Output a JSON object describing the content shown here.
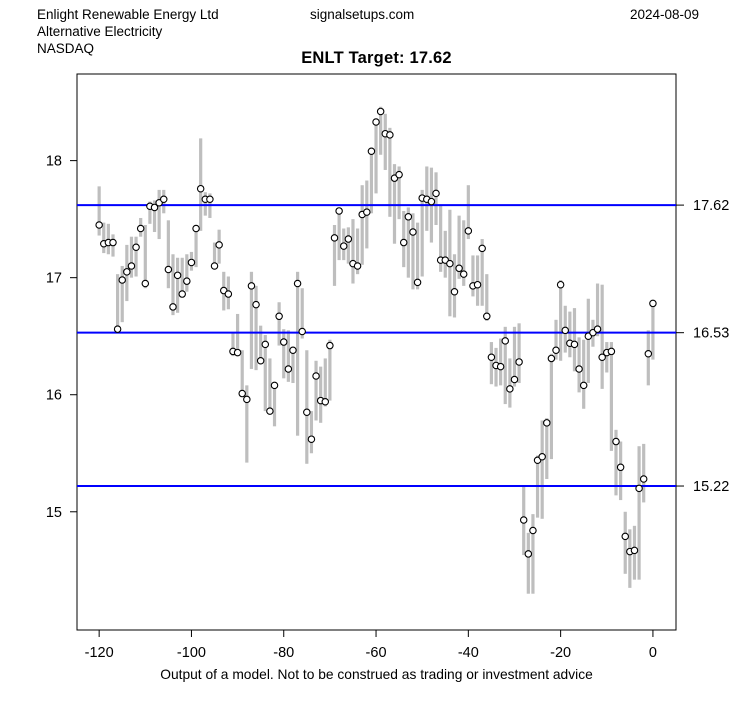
{
  "header": {
    "company": "Enlight Renewable Energy Ltd",
    "industry": "Alternative Electricity",
    "exchange": "NASDAQ",
    "website": "signalsetups.com",
    "date": "2024-08-09"
  },
  "title": "ENLT Target: 17.62",
  "footer": {
    "disclaimer": "Output of a model. Not to be construed as trading or investment advice"
  },
  "chart_data": {
    "type": "bar",
    "subtype": "daily-high-low-bars-with-close-markers",
    "title": "ENLT Target: 17.62",
    "ticker": "ENLT",
    "target_value": 17.62,
    "xlabel": "",
    "ylabel": "",
    "grid": false,
    "xlim": [
      -124.8,
      5.0
    ],
    "ylim": [
      13.99,
      18.74
    ],
    "x_ticks": [
      -120,
      -100,
      -80,
      -60,
      -40,
      -20,
      0
    ],
    "y_ticks": [
      15,
      16,
      17,
      18
    ],
    "hlines": [
      {
        "value": 17.62,
        "label": "17.62"
      },
      {
        "value": 16.53,
        "label": "16.53"
      },
      {
        "value": 15.22,
        "label": "15.22"
      }
    ],
    "colors": {
      "bar": "#bebebe",
      "marker_fill": "#ffffff",
      "marker_stroke": "#000000",
      "hline": "#0000ff",
      "axis": "#000000"
    },
    "x": [
      -120,
      -119,
      -118,
      -117,
      -116,
      -115,
      -114,
      -113,
      -112,
      -111,
      -110,
      -109,
      -108,
      -107,
      -106,
      -105,
      -104,
      -103,
      -102,
      -101,
      -100,
      -99,
      -98,
      -97,
      -96,
      -95,
      -94,
      -93,
      -92,
      -91,
      -90,
      -89,
      -88,
      -87,
      -86,
      -85,
      -84,
      -83,
      -82,
      -81,
      -80,
      -79,
      -78,
      -77,
      -76,
      -75,
      -74,
      -73,
      -72,
      -71,
      -70,
      -69,
      -68,
      -67,
      -66,
      -65,
      -64,
      -63,
      -62,
      -61,
      -60,
      -59,
      -58,
      -57,
      -56,
      -55,
      -54,
      -53,
      -52,
      -51,
      -50,
      -49,
      -48,
      -47,
      -46,
      -45,
      -44,
      -43,
      -42,
      -41,
      -40,
      -39,
      -38,
      -37,
      -36,
      -35,
      -34,
      -33,
      -32,
      -31,
      -30,
      -29,
      -28,
      -27,
      -26,
      -25,
      -24,
      -23,
      -22,
      -21,
      -20,
      -19,
      -18,
      -17,
      -16,
      -15,
      -14,
      -13,
      -12,
      -11,
      -10,
      -9,
      -8,
      -7,
      -6,
      -5,
      -4,
      -3,
      -2,
      -1,
      0
    ],
    "series": [
      {
        "name": "high",
        "values": [
          17.78,
          17.47,
          17.46,
          17.37,
          17.03,
          17.1,
          17.28,
          17.35,
          17.35,
          17.51,
          17.45,
          17.65,
          17.66,
          17.75,
          17.75,
          17.49,
          17.2,
          17.17,
          17.17,
          17.2,
          17.22,
          17.45,
          18.19,
          17.73,
          17.72,
          17.3,
          17.41,
          17.05,
          17.01,
          16.53,
          16.69,
          16.38,
          16.08,
          17.05,
          16.93,
          16.59,
          16.51,
          16.31,
          16.1,
          16.79,
          16.56,
          16.55,
          16.4,
          17.05,
          16.91,
          16.38,
          15.86,
          16.29,
          16.24,
          16.31,
          16.47,
          17.45,
          17.6,
          17.42,
          17.43,
          17.5,
          17.42,
          17.79,
          17.83,
          18.11,
          18.35,
          18.46,
          18.4,
          18.28,
          17.97,
          17.95,
          17.57,
          17.6,
          17.55,
          17.47,
          17.75,
          17.95,
          17.94,
          17.9,
          17.62,
          17.4,
          17.58,
          17.2,
          17.53,
          17.49,
          17.79,
          17.19,
          17.19,
          17.33,
          17.03,
          16.45,
          16.4,
          16.48,
          16.58,
          16.31,
          16.58,
          16.61,
          15.22,
          14.82,
          14.98,
          15.48,
          15.78,
          15.8,
          16.35,
          16.64,
          16.98,
          16.76,
          16.71,
          16.74,
          16.49,
          16.47,
          16.82,
          16.64,
          16.95,
          16.94,
          16.45,
          16.45,
          15.7,
          15.6,
          15.0,
          14.85,
          14.88,
          15.56,
          15.58,
          16.55,
          16.8
        ]
      },
      {
        "name": "low",
        "values": [
          17.36,
          17.21,
          17.2,
          17.18,
          16.53,
          16.62,
          16.8,
          17.0,
          17.01,
          17.35,
          16.91,
          17.46,
          17.39,
          17.33,
          17.55,
          16.91,
          16.68,
          16.7,
          16.84,
          16.88,
          17.06,
          17.09,
          17.4,
          17.53,
          17.51,
          17.08,
          17.12,
          16.72,
          16.73,
          16.33,
          16.33,
          16.0,
          15.42,
          16.22,
          16.21,
          16.27,
          15.86,
          15.85,
          15.73,
          16.42,
          16.14,
          16.11,
          16.1,
          15.65,
          16.48,
          15.41,
          15.5,
          15.78,
          15.76,
          15.9,
          15.95,
          16.93,
          17.15,
          17.15,
          17.12,
          16.95,
          17.03,
          17.11,
          17.25,
          17.55,
          17.72,
          18.05,
          17.92,
          17.52,
          17.29,
          17.5,
          17.09,
          17.0,
          16.9,
          16.9,
          17.01,
          17.4,
          17.3,
          17.45,
          17.05,
          17.0,
          16.67,
          16.66,
          16.99,
          16.93,
          17.33,
          16.84,
          16.76,
          16.76,
          16.63,
          16.09,
          16.07,
          16.08,
          15.92,
          15.89,
          16.07,
          16.1,
          14.63,
          14.3,
          14.3,
          14.95,
          14.94,
          15.28,
          15.45,
          16.3,
          16.29,
          16.36,
          16.32,
          16.2,
          16.02,
          15.88,
          16.1,
          16.41,
          16.5,
          16.05,
          16.19,
          15.52,
          15.14,
          15.1,
          14.47,
          14.35,
          14.42,
          14.42,
          15.08,
          16.08,
          16.3
        ]
      },
      {
        "name": "close",
        "values": [
          17.45,
          17.29,
          17.3,
          17.3,
          16.56,
          16.98,
          17.05,
          17.1,
          17.26,
          17.42,
          16.95,
          17.61,
          17.6,
          17.64,
          17.67,
          17.07,
          16.75,
          17.02,
          16.86,
          16.97,
          17.13,
          17.42,
          17.76,
          17.67,
          17.67,
          17.1,
          17.28,
          16.89,
          16.86,
          16.37,
          16.36,
          16.01,
          15.96,
          16.93,
          16.77,
          16.29,
          16.43,
          15.86,
          16.08,
          16.67,
          16.45,
          16.22,
          16.38,
          16.95,
          16.54,
          15.85,
          15.62,
          16.16,
          15.95,
          15.94,
          16.42,
          17.34,
          17.57,
          17.27,
          17.33,
          17.12,
          17.1,
          17.54,
          17.56,
          18.08,
          18.33,
          18.42,
          18.23,
          18.22,
          17.85,
          17.88,
          17.3,
          17.52,
          17.39,
          16.96,
          17.68,
          17.67,
          17.65,
          17.72,
          17.15,
          17.15,
          17.12,
          16.88,
          17.08,
          17.03,
          17.4,
          16.93,
          16.94,
          17.25,
          16.67,
          16.32,
          16.25,
          16.24,
          16.46,
          16.05,
          16.13,
          16.28,
          14.93,
          14.64,
          14.84,
          15.44,
          15.47,
          15.76,
          16.31,
          16.38,
          16.94,
          16.55,
          16.44,
          16.43,
          16.22,
          16.08,
          16.5,
          16.53,
          16.56,
          16.32,
          16.36,
          16.37,
          15.6,
          15.38,
          14.79,
          14.66,
          14.67,
          15.2,
          15.28,
          16.35,
          16.78
        ]
      }
    ]
  }
}
